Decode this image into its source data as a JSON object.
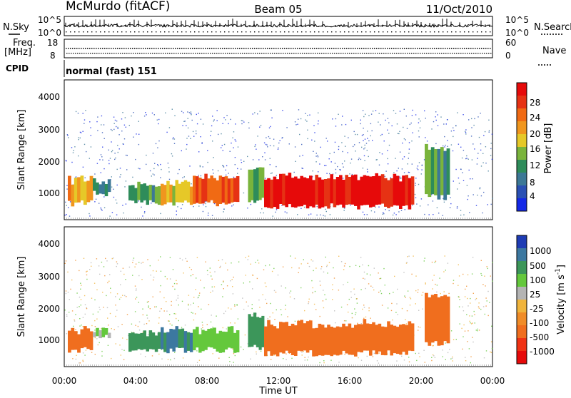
{
  "header": {
    "station": "McMurdo (fitACF)",
    "beam": "Beam 05",
    "date": "11/Oct/2010"
  },
  "strip_panels": {
    "nsky_label": "N.Sky",
    "nsky_ticks": [
      "10^5",
      "10^0"
    ],
    "nsearch_label": "N.Search",
    "nsearch_ticks": [
      "10^5",
      "10^0"
    ],
    "freq_label": "Freq.",
    "freq_unit": "[MHz]",
    "freq_ticks": [
      "18",
      "8"
    ],
    "nave_label": "Nave",
    "nave_ticks": [
      "60",
      "0"
    ],
    "cpid_label": "CPID",
    "cpid_value": "normal (fast) 151"
  },
  "axes": {
    "ylabel": "Slant Range [km]",
    "xlabel": "Time UT",
    "yticks": [
      "1000",
      "2000",
      "3000",
      "4000"
    ],
    "xticks": [
      "00:00",
      "04:00",
      "08:00",
      "12:00",
      "16:00",
      "20:00",
      "00:00"
    ]
  },
  "power_colorbar": {
    "title": "Power [dB]",
    "ticks": [
      "4",
      "8",
      "12",
      "16",
      "20",
      "24",
      "28"
    ],
    "colors": [
      "#1428e6",
      "#2a50b4",
      "#3c7896",
      "#2e8c5a",
      "#7ab43c",
      "#e6c828",
      "#f0961e",
      "#f06a14",
      "#e63214",
      "#e60a0a"
    ]
  },
  "velocity_colorbar": {
    "title": "Velocity [m s-1]",
    "title_main": "Velocity [m s",
    "title_sup": "-1",
    "title_end": "]",
    "ticks": [
      "1000",
      "500",
      "100",
      "25",
      "-25",
      "-100",
      "-500",
      "-1000"
    ],
    "colors": [
      "#1e3cb4",
      "#3c78a0",
      "#3c965a",
      "#64c83c",
      "#b4b4b4",
      "#f0b43c",
      "#f08c28",
      "#f06e1e",
      "#f03214",
      "#e60a0a"
    ]
  },
  "chart_data": [
    {
      "type": "heatmap",
      "title": "Power [dB]",
      "xlabel": "Time UT",
      "ylabel": "Slant Range [km]",
      "xlim": [
        0,
        24
      ],
      "ylim": [
        180,
        4600
      ],
      "zlim": [
        0,
        32
      ],
      "regions": [
        {
          "t_start": 0.2,
          "t_end": 1.6,
          "r_low": 700,
          "r_high": 1400,
          "power_dB": 20
        },
        {
          "t_start": 1.6,
          "t_end": 2.6,
          "r_low": 1000,
          "r_high": 1300,
          "power_dB": 10
        },
        {
          "t_start": 3.6,
          "t_end": 5.4,
          "r_low": 700,
          "r_high": 1200,
          "power_dB": 12
        },
        {
          "t_start": 5.4,
          "t_end": 7.2,
          "r_low": 700,
          "r_high": 1300,
          "power_dB": 18
        },
        {
          "t_start": 7.2,
          "t_end": 9.8,
          "r_low": 700,
          "r_high": 1500,
          "power_dB": 26
        },
        {
          "t_start": 10.3,
          "t_end": 11.2,
          "r_low": 800,
          "r_high": 1800,
          "power_dB": 14
        },
        {
          "t_start": 11.2,
          "t_end": 19.6,
          "r_low": 600,
          "r_high": 1500,
          "power_dB": 30
        },
        {
          "t_start": 20.2,
          "t_end": 21.6,
          "r_low": 900,
          "r_high": 2400,
          "power_dB": 12
        }
      ]
    },
    {
      "type": "heatmap",
      "title": "Velocity [m s-1]",
      "xlabel": "Time UT",
      "ylabel": "Slant Range [km]",
      "xlim": [
        0,
        24
      ],
      "ylim": [
        180,
        4600
      ],
      "regions": [
        {
          "t_start": 0.2,
          "t_end": 1.6,
          "r_low": 700,
          "r_high": 1300,
          "velocity": -150
        },
        {
          "t_start": 1.6,
          "t_end": 2.6,
          "r_low": 1100,
          "r_high": 1300,
          "velocity": 25
        },
        {
          "t_start": 3.6,
          "t_end": 5.4,
          "r_low": 700,
          "r_high": 1200,
          "velocity": 150
        },
        {
          "t_start": 5.4,
          "t_end": 7.2,
          "r_low": 700,
          "r_high": 1300,
          "velocity": 500
        },
        {
          "t_start": 7.2,
          "t_end": 9.8,
          "r_low": 700,
          "r_high": 1300,
          "velocity": 50
        },
        {
          "t_start": 10.3,
          "t_end": 11.2,
          "r_low": 800,
          "r_high": 1800,
          "velocity": 300
        },
        {
          "t_start": 11.2,
          "t_end": 19.6,
          "r_low": 600,
          "r_high": 1500,
          "velocity": -300
        },
        {
          "t_start": 20.2,
          "t_end": 21.6,
          "r_low": 900,
          "r_high": 2400,
          "velocity": -250
        }
      ]
    }
  ]
}
